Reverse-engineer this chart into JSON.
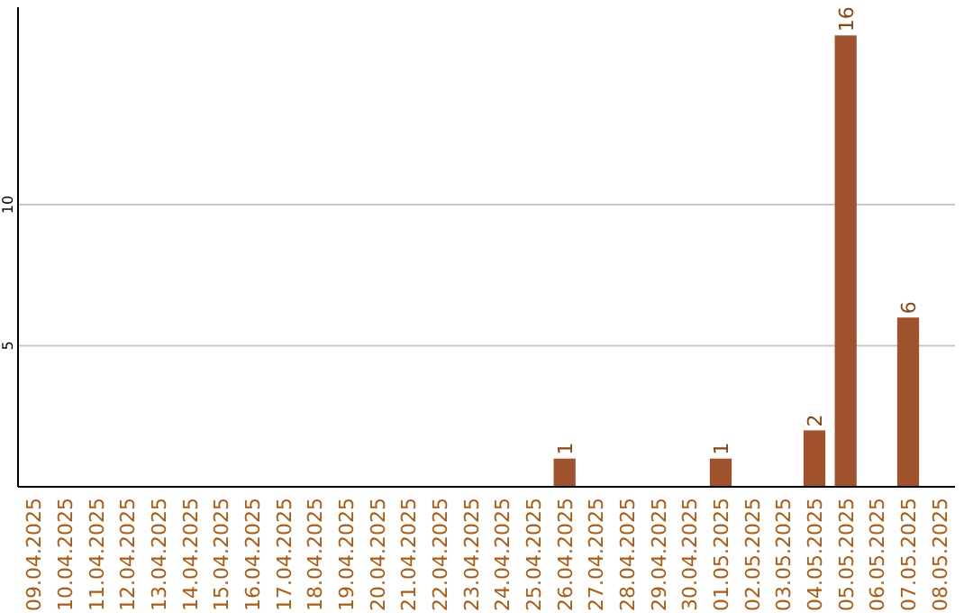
{
  "chart_data": {
    "type": "bar",
    "categories": [
      "09.04.2025",
      "10.04.2025",
      "11.04.2025",
      "12.04.2025",
      "13.04.2025",
      "14.04.2025",
      "15.04.2025",
      "16.04.2025",
      "17.04.2025",
      "18.04.2025",
      "19.04.2025",
      "20.04.2025",
      "21.04.2025",
      "22.04.2025",
      "23.04.2025",
      "24.04.2025",
      "25.04.2025",
      "26.04.2025",
      "27.04.2025",
      "28.04.2025",
      "29.04.2025",
      "30.04.2025",
      "01.05.2025",
      "02.05.2025",
      "03.05.2025",
      "04.05.2025",
      "05.05.2025",
      "06.05.2025",
      "07.05.2025",
      "08.05.2025"
    ],
    "values": [
      0,
      0,
      0,
      0,
      0,
      0,
      0,
      0,
      0,
      0,
      0,
      0,
      0,
      0,
      0,
      0,
      0,
      1,
      0,
      0,
      0,
      0,
      1,
      0,
      0,
      2,
      16,
      0,
      6,
      0
    ],
    "value_labels": [
      null,
      null,
      null,
      null,
      null,
      null,
      null,
      null,
      null,
      null,
      null,
      null,
      null,
      null,
      null,
      null,
      null,
      "1",
      null,
      null,
      null,
      null,
      "1",
      null,
      null,
      "2",
      "16",
      null,
      "6",
      null
    ],
    "color": "#a0522d",
    "ylim": [
      0,
      17
    ],
    "yticks": [
      5,
      10
    ],
    "grid": "y"
  }
}
